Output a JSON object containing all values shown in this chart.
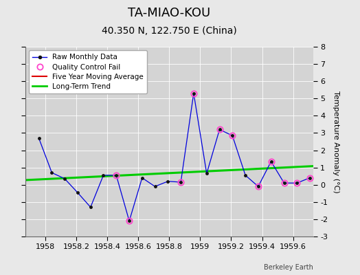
{
  "title": "TA-MIAO-KOU",
  "subtitle": "40.350 N, 122.750 E (China)",
  "attribution": "Berkeley Earth",
  "ylabel": "Temperature Anomaly (°C)",
  "xlim": [
    1957.87,
    1959.73
  ],
  "ylim": [
    -3,
    8
  ],
  "yticks": [
    -3,
    -2,
    -1,
    0,
    1,
    2,
    3,
    4,
    5,
    6,
    7,
    8
  ],
  "xticks": [
    1958.0,
    1958.2,
    1958.4,
    1958.6,
    1958.8,
    1959.0,
    1959.2,
    1959.4,
    1959.6
  ],
  "xtick_labels": [
    "1958",
    "1958.2",
    "1958.4",
    "1958.6",
    "1958.8",
    "1959",
    "1959.2",
    "1959.4",
    "1959.6"
  ],
  "raw_x": [
    1957.958,
    1958.042,
    1958.125,
    1958.208,
    1958.292,
    1958.375,
    1958.458,
    1958.542,
    1958.625,
    1958.708,
    1958.792,
    1958.875,
    1958.958,
    1959.042,
    1959.125,
    1959.208,
    1959.292,
    1959.375,
    1959.458,
    1959.542,
    1959.625,
    1959.708
  ],
  "raw_y": [
    2.7,
    0.7,
    0.35,
    -0.45,
    -1.3,
    0.55,
    0.55,
    -2.1,
    0.4,
    -0.1,
    0.2,
    0.15,
    5.3,
    0.65,
    3.2,
    2.85,
    0.55,
    -0.1,
    1.35,
    0.1,
    0.1,
    0.4
  ],
  "qc_fail_x": [
    1958.458,
    1958.542,
    1958.875,
    1958.958,
    1959.125,
    1959.208,
    1959.375,
    1959.458,
    1959.542,
    1959.625,
    1959.708
  ],
  "qc_fail_y": [
    0.55,
    -2.1,
    0.15,
    5.3,
    3.2,
    2.85,
    -0.1,
    1.35,
    0.1,
    0.1,
    0.4
  ],
  "trend_x": [
    1957.87,
    1959.73
  ],
  "trend_y": [
    0.27,
    1.08
  ],
  "bg_color": "#e8e8e8",
  "plot_bg_color": "#d4d4d4",
  "raw_line_color": "#0000dd",
  "raw_marker_color": "#111111",
  "qc_marker_color": "#ff44cc",
  "five_year_color": "#dd0000",
  "trend_color": "#00cc00",
  "title_fontsize": 13,
  "subtitle_fontsize": 10,
  "tick_fontsize": 8,
  "ylabel_fontsize": 8
}
